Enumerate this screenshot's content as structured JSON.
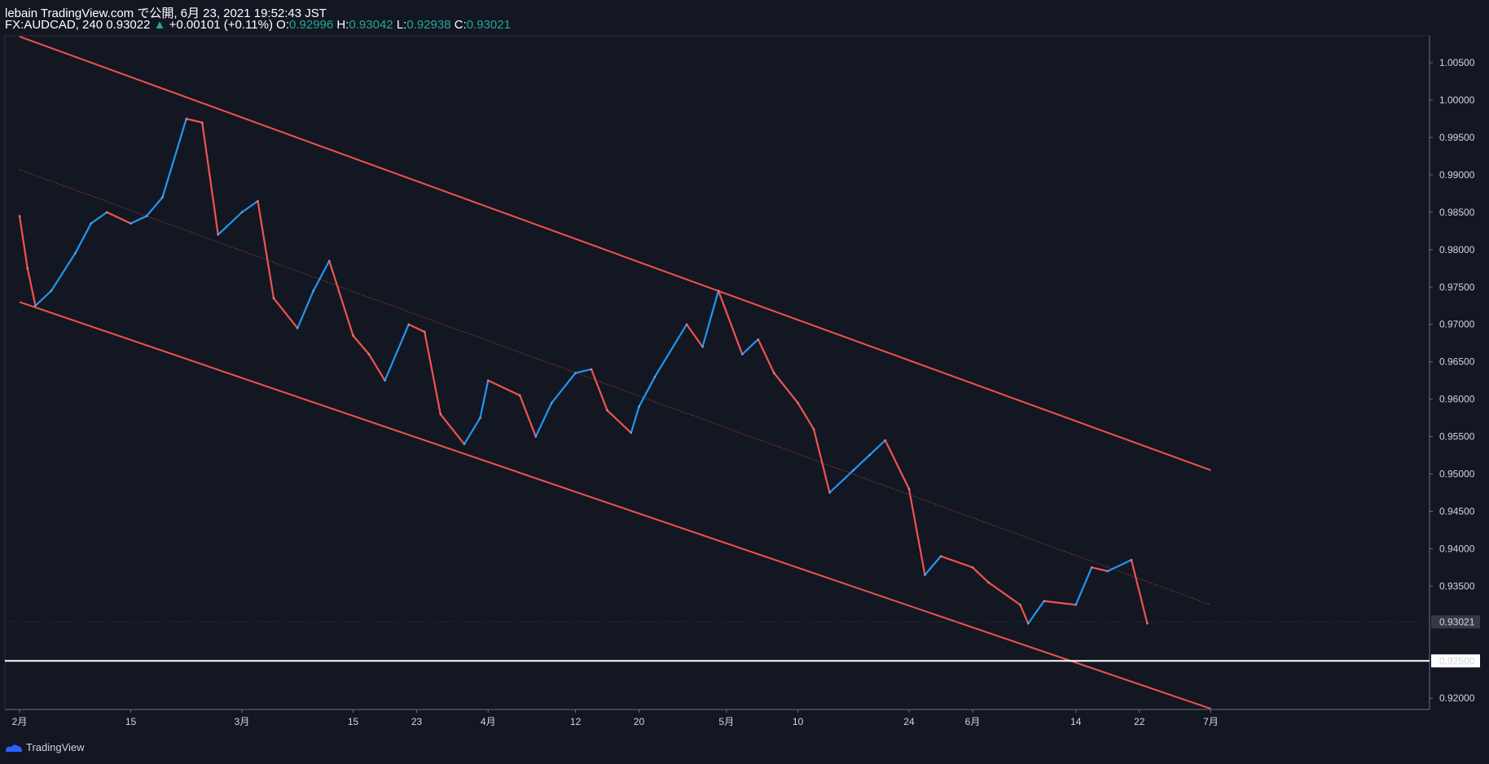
{
  "header": {
    "line1": "lebain TradingView.com で公開, 6月 23, 2021 19:52:43 JST",
    "symbol": "FX:AUDCAD, 240",
    "last": "0.93022",
    "change": "+0.00101 (+0.11%)",
    "o_label": "O:",
    "o_value": "0.92996",
    "h_label": "H:",
    "h_value": "0.93042",
    "l_label": "L:",
    "l_value": "0.92938",
    "c_label": "C:",
    "c_value": "0.93021"
  },
  "brand": {
    "label": "TradingView",
    "icon": "tradingview-logo-icon"
  },
  "colors": {
    "background": "#131722",
    "up": "#2196f3",
    "down": "#ef5350",
    "channel": "#ef5350",
    "hline": "#ffffff",
    "ohlc": "#26a69a"
  },
  "chart_data": {
    "type": "line",
    "title": "",
    "price_axis": {
      "ticks": [
        "1.00500",
        "1.00000",
        "0.99500",
        "0.99000",
        "0.98500",
        "0.98000",
        "0.97500",
        "0.97000",
        "0.96500",
        "0.96000",
        "0.95500",
        "0.95000",
        "0.94500",
        "0.94000",
        "0.93500",
        "0.93021",
        "0.92500",
        "0.92000"
      ],
      "ylim": [
        0.9185,
        1.0086
      ],
      "current_price_label": "0.93021",
      "horizontal_line_label": "0.92500"
    },
    "time_axis": {
      "ticks": [
        "2月",
        "15",
        "3月",
        "15",
        "23",
        "4月",
        "12",
        "20",
        "5月",
        "10",
        "24",
        "6月",
        "14",
        "22",
        "7月"
      ]
    },
    "series": [
      {
        "x": [
          "2月 1",
          "2月 2",
          "2月 3",
          "2月 5",
          "2月 8",
          "2月 10",
          "2月 12",
          "2月 15",
          "2月 17",
          "2月 19",
          "2月 22",
          "2月 24",
          "2月 26",
          "3月 1",
          "3月 3",
          "3月 5",
          "3月 8",
          "3月 10",
          "3月 12",
          "3月 15",
          "3月 17",
          "3月 19",
          "3月 22",
          "3月 24",
          "3月 26",
          "3月 29",
          "3月 31",
          "4月 1",
          "4月 5",
          "4月 7",
          "4月 9",
          "4月 12",
          "4月 14",
          "4月 16",
          "4月 19",
          "4月 20",
          "4月 22",
          "4月 26",
          "4月 28",
          "4月 30",
          "5月 3",
          "5月 5",
          "5月 7",
          "5月 10",
          "5月 12",
          "5月 14",
          "5月 17",
          "5月 19",
          "5月 21",
          "5月 24",
          "5月 26",
          "5月 28",
          "6月 1",
          "6月 3",
          "6月 7",
          "6月 8",
          "6月 10",
          "6月 14",
          "6月 16",
          "6月 18",
          "6月 21",
          "6月 23"
        ],
        "y": [
          0.9845,
          0.9775,
          0.9725,
          0.9745,
          0.9795,
          0.9835,
          0.985,
          0.9835,
          0.9845,
          0.987,
          0.9975,
          0.997,
          0.982,
          0.985,
          0.9865,
          0.9735,
          0.9695,
          0.9745,
          0.9785,
          0.9685,
          0.966,
          0.9625,
          0.97,
          0.969,
          0.958,
          0.954,
          0.9575,
          0.9625,
          0.9605,
          0.955,
          0.9595,
          0.9635,
          0.964,
          0.9585,
          0.9555,
          0.959,
          0.963,
          0.97,
          0.967,
          0.9745,
          0.966,
          0.968,
          0.9635,
          0.9595,
          0.956,
          0.9475,
          0.9505,
          0.9525,
          0.9545,
          0.948,
          0.9365,
          0.939,
          0.9375,
          0.9355,
          0.9325,
          0.93,
          0.933,
          0.9325,
          0.9375,
          0.937,
          0.9385,
          0.93
        ]
      }
    ],
    "overlays": {
      "channel_upper": {
        "x": [
          "2月 1",
          "7月 1"
        ],
        "y": [
          1.0085,
          0.9505
        ]
      },
      "channel_lower": {
        "x": [
          "2月 1",
          "7月 1"
        ],
        "y": [
          0.973,
          0.9186
        ]
      },
      "channel_mid": {
        "x": [
          "2月 1",
          "7月 1"
        ],
        "y": [
          0.9907,
          0.9325
        ]
      },
      "horizontal_line": 0.925
    },
    "grid": false,
    "legend": "none"
  }
}
